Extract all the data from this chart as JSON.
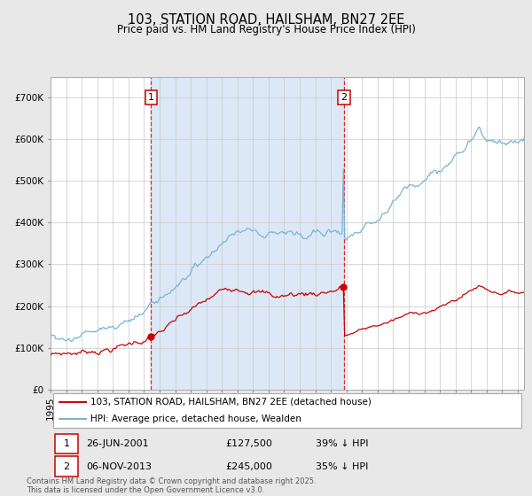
{
  "title": "103, STATION ROAD, HAILSHAM, BN27 2EE",
  "subtitle": "Price paid vs. HM Land Registry's House Price Index (HPI)",
  "legend_line1": "103, STATION ROAD, HAILSHAM, BN27 2EE (detached house)",
  "legend_line2": "HPI: Average price, detached house, Wealden",
  "annotation1_date": "26-JUN-2001",
  "annotation1_price": 127500,
  "annotation1_pct": "39% ↓ HPI",
  "annotation2_date": "06-NOV-2013",
  "annotation2_price": 245000,
  "annotation2_pct": "35% ↓ HPI",
  "copyright_text": "Contains HM Land Registry data © Crown copyright and database right 2025.\nThis data is licensed under the Open Government Licence v3.0.",
  "hpi_color": "#7ab3d4",
  "price_color": "#cc0000",
  "shading_color": "#dce8f5",
  "grid_color": "#c8c8c8",
  "fig_bg": "#e8e8e8",
  "plot_bg": "#ffffff",
  "ylim_max": 750000,
  "yticks": [
    0,
    100000,
    200000,
    300000,
    400000,
    500000,
    600000,
    700000
  ],
  "start_year": 1995,
  "end_year": 2025,
  "ann1_year": 2001.46,
  "ann2_year": 2013.84
}
